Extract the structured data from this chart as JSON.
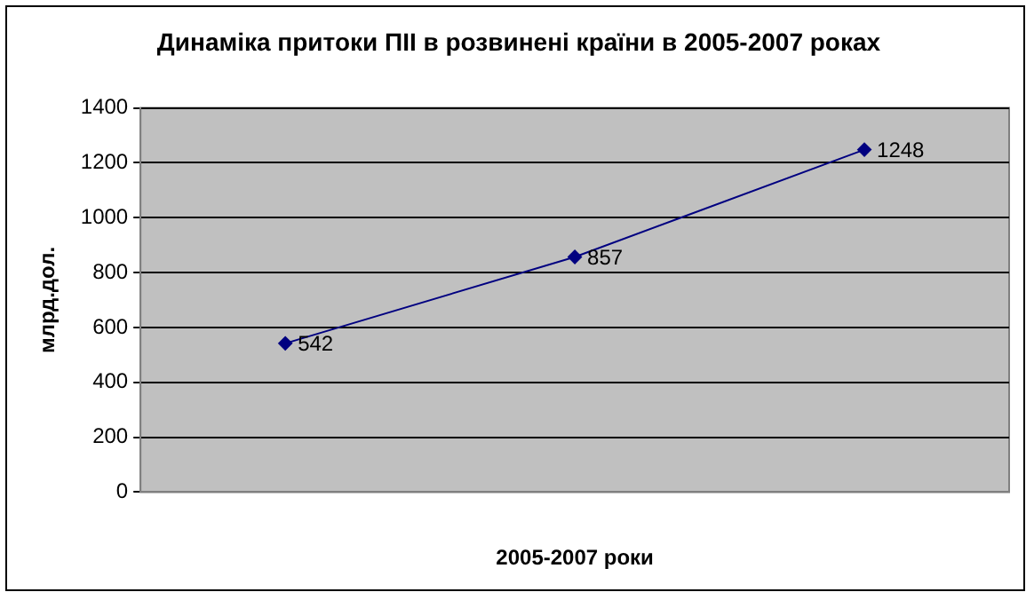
{
  "chart_data": {
    "type": "line",
    "title": "Динаміка притоки ПІІ в розвинені країни в 2005-2007 роках",
    "xlabel": "2005-2007 роки",
    "ylabel": "млрд.дол.",
    "categories": [
      null,
      null,
      null
    ],
    "series": [
      {
        "color": "#000080",
        "values": [
          542,
          857,
          1248
        ]
      }
    ],
    "ylim": [
      0,
      1400
    ],
    "yticks": [
      0,
      200,
      400,
      600,
      800,
      1000,
      1200,
      1400
    ],
    "grid": "y",
    "legend": false,
    "marker": "diamond",
    "line_style": "solid",
    "data_labels": true
  }
}
